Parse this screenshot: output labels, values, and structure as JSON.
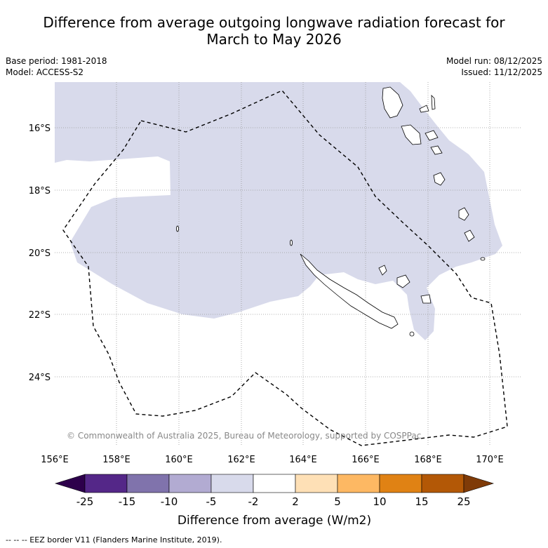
{
  "title_line1": "Difference from average outgoing longwave radiation forecast for",
  "title_line2": "March to May 2026",
  "base_period": "Base period: 1981-2018",
  "model": "Model: ACCESS-S2",
  "model_run": "Model run: 08/12/2025",
  "issued": "Issued: 11/12/2025",
  "lat_labels": [
    "16°S",
    "18°S",
    "20°S",
    "22°S",
    "24°S"
  ],
  "lon_labels": [
    "156°E",
    "158°E",
    "160°E",
    "162°E",
    "164°E",
    "166°E",
    "168°E",
    "170°E"
  ],
  "copyright": "© Commonwealth of Australia 2025, Bureau of Meteorology, supported by COSPPac",
  "colorbar": {
    "title": "Difference from average (W/m2)",
    "ticks": [
      "-25",
      "-15",
      "-10",
      "-5",
      "-2",
      "2",
      "5",
      "10",
      "15",
      "25"
    ],
    "colors": [
      "#2d004b",
      "#542788",
      "#8073ac",
      "#b2abd2",
      "#d8daeb",
      "#ffffff",
      "#fee0b6",
      "#fdb863",
      "#e08214",
      "#b35806",
      "#7f3b08"
    ]
  },
  "footnote": "--  --  -- EEZ border V11 (Flanders Marine Institute, 2019)."
}
